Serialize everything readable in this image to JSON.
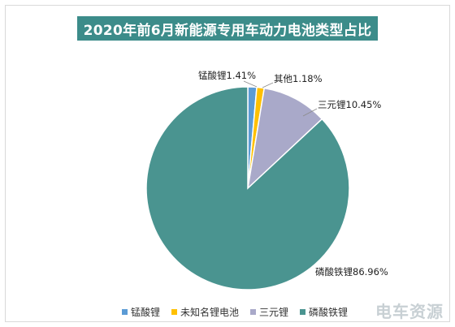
{
  "chart_data": {
    "type": "pie",
    "title": "2020年前6月新能源专用车动力电池类型占比",
    "categories": [
      "锰酸锂",
      "未知名锂电池",
      "三元锂",
      "磷酸铁锂"
    ],
    "values": [
      1.41,
      1.18,
      10.45,
      86.96
    ],
    "data_labels": [
      "锰酸锂1.41%",
      "其他1.18%",
      "三元锂10.45%",
      "磷酸铁锂86.96%"
    ],
    "colors": [
      "#5b9bd5",
      "#ffc000",
      "#a9a9c9",
      "#4a9490"
    ],
    "legend_position": "bottom",
    "start_angle": "12 o'clock",
    "direction": "clockwise"
  },
  "watermark": "电车资源"
}
